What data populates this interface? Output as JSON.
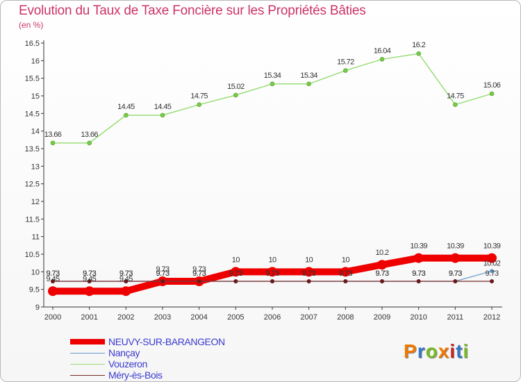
{
  "header": {
    "title": "Evolution du Taux de Taxe Foncière sur les Propriétés Bâties",
    "unit": "(en %)"
  },
  "logo": {
    "text": "Proxiti",
    "colors": [
      "#f07800",
      "#3377cc",
      "#77bb22",
      "#f07800",
      "#d22222",
      "#3377cc",
      "#77bb22"
    ]
  },
  "chart_data": {
    "type": "line",
    "x": [
      "2000",
      "2001",
      "2002",
      "2003",
      "2004",
      "2005",
      "2006",
      "2007",
      "2008",
      "2009",
      "2010",
      "2011",
      "2012"
    ],
    "ylim": [
      9,
      16.5
    ],
    "yticks": [
      "9",
      "9.5",
      "10",
      "10.5",
      "11",
      "11.5",
      "12",
      "12.5",
      "13",
      "13.5",
      "14",
      "14.5",
      "15",
      "15.5",
      "16",
      "16.5"
    ],
    "grid": false,
    "legend_position": "bottom-left",
    "series": [
      {
        "name": "NEUVY-SUR-BARANGEON",
        "color": "#ee0000",
        "values": [
          9.45,
          9.45,
          9.45,
          9.73,
          9.73,
          10,
          10,
          10,
          10,
          10.2,
          10.39,
          10.39,
          10.39
        ],
        "labels": [
          "9.45",
          "9.45",
          "9.45",
          "9.73",
          "9.73",
          "10",
          "10",
          "10",
          "10",
          "10.2",
          "10.39",
          "10.39",
          "10.39"
        ]
      },
      {
        "name": "Nançay",
        "color": "#6699cc",
        "values": [
          9.73,
          9.73,
          9.73,
          9.73,
          9.73,
          9.73,
          9.73,
          9.73,
          9.73,
          9.73,
          9.73,
          9.73,
          10.02
        ],
        "labels": [
          "9.73",
          "9.73",
          "9.73",
          "9.73",
          "9.73",
          "9.73",
          "9.73",
          "9.73",
          "9.73",
          "9.73",
          "9.73",
          "9.73",
          "10.02"
        ]
      },
      {
        "name": "Vouzeron",
        "color": "#99dd77",
        "values": [
          13.66,
          13.66,
          14.45,
          14.45,
          14.75,
          15.02,
          15.34,
          15.34,
          15.72,
          16.04,
          16.2,
          14.75,
          15.06
        ],
        "labels": [
          "13.66",
          "13.66",
          "14.45",
          "14.45",
          "14.75",
          "15.02",
          "15.34",
          "15.34",
          "15.72",
          "16.04",
          "16.2",
          "14.75",
          "15.06"
        ]
      },
      {
        "name": "Méry-ès-Bois",
        "color": "#7a2a2a",
        "values": [
          9.73,
          9.73,
          9.73,
          9.73,
          9.73,
          9.73,
          9.73,
          9.73,
          9.73,
          9.73,
          9.73,
          9.73,
          9.73
        ],
        "labels": [
          "9.73",
          "9.73",
          "9.73",
          "9.73",
          "9.73",
          "9.73",
          "9.73",
          "9.73",
          "9.73",
          "9.73",
          "9.73",
          "9.73",
          "9.73"
        ]
      }
    ]
  }
}
